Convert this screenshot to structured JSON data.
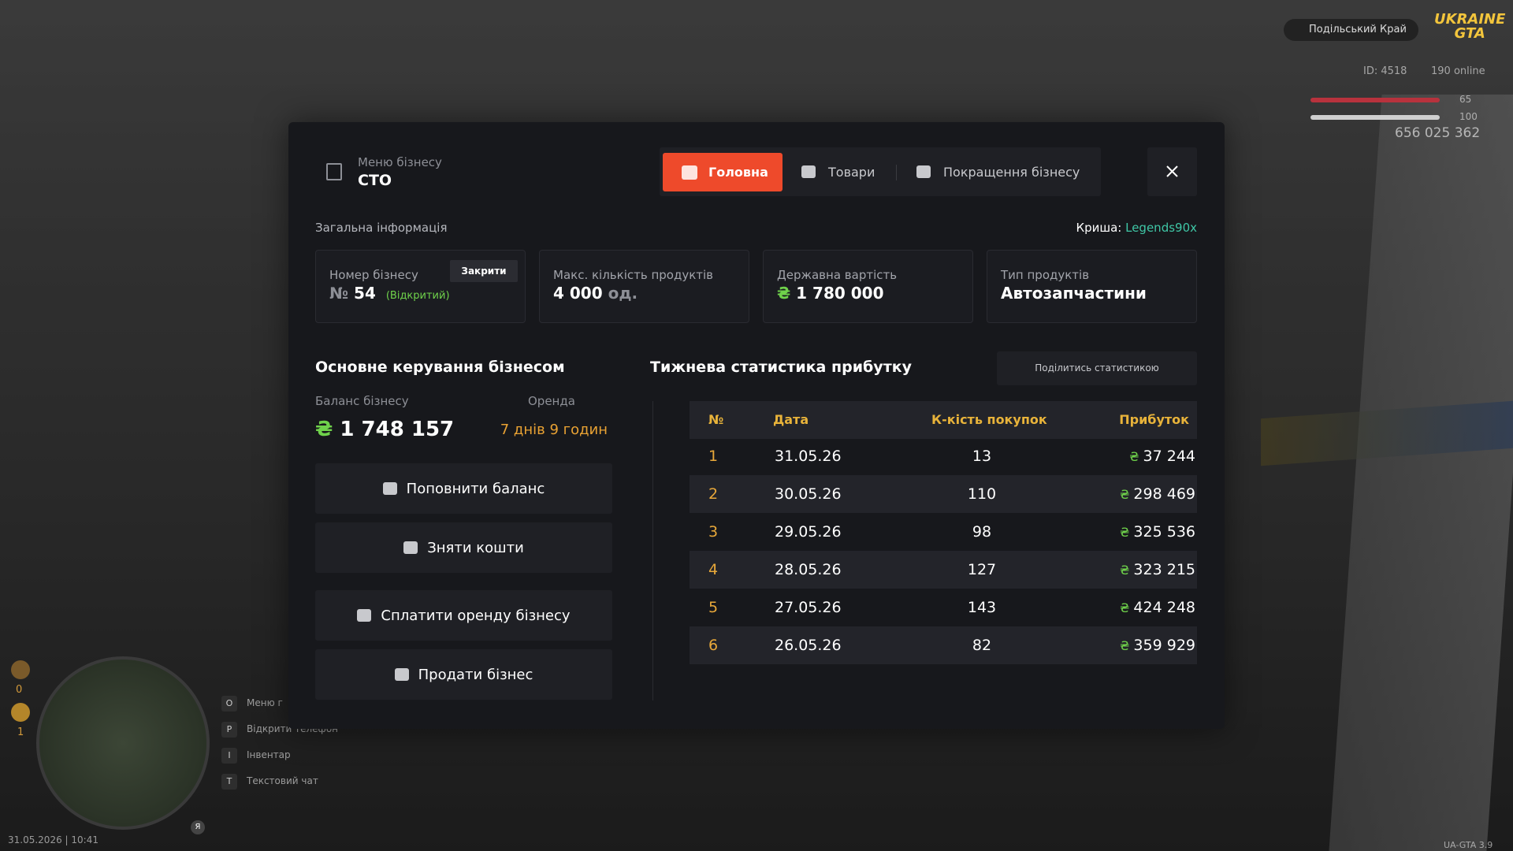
{
  "hud": {
    "logo": [
      "UKRAINE",
      "GTA"
    ],
    "region": "Подільський Край",
    "id": "ID: 4518",
    "online": "190 online",
    "health": "65",
    "armor": "100",
    "money": "656 025 362",
    "wanted": [
      "0",
      "1"
    ],
    "keys": [
      {
        "key": "O",
        "label": "Меню г"
      },
      {
        "key": "P",
        "label": "Відкрити телефон"
      },
      {
        "key": "I",
        "label": "Інвентар"
      },
      {
        "key": "T",
        "label": "Текстовий чат"
      }
    ],
    "mic_key": "Я",
    "date": "31.05.2026 | 10:41",
    "version": "UA-GTA 3.9"
  },
  "modal": {
    "menu_label": "Меню бізнесу",
    "business_name": "СТО",
    "currency": "₴",
    "tabs": [
      "Головна",
      "Товари",
      "Покращення бізнесу"
    ],
    "general_info": "Загальна інформація",
    "roof_label": "Криша:",
    "roof_value": "Legends90x",
    "cards": [
      {
        "label": "Номер бізнесу",
        "button": "Закрити",
        "prefix": "№",
        "value": "54",
        "status": "(Відкритий)"
      },
      {
        "label": "Макс. кількість продуктів",
        "value": "4 000",
        "unit": "од."
      },
      {
        "label": "Державна вартість",
        "value": "1 780 000"
      },
      {
        "label": "Тип продуктів",
        "value": "Автозапчастини"
      }
    ],
    "management": {
      "title": "Основне керування бізнесом",
      "balance_label": "Баланс бізнесу",
      "balance": "1 748 157",
      "rent_label": "Оренда",
      "rent": "7 днів 9 годин",
      "buttons": [
        "Поповнити баланс",
        "Зняти кошти",
        "Сплатити оренду бізнесу",
        "Продати бізнес"
      ]
    },
    "stats": {
      "title": "Тижнева статистика прибутку",
      "share": "Поділитись статистикою",
      "columns": [
        "№",
        "Дата",
        "К-кість покупок",
        "Прибуток"
      ],
      "rows": [
        [
          "1",
          "31.05.26",
          "13",
          "37 244"
        ],
        [
          "2",
          "30.05.26",
          "110",
          "298 469"
        ],
        [
          "3",
          "29.05.26",
          "98",
          "325 536"
        ],
        [
          "4",
          "28.05.26",
          "127",
          "323 215"
        ],
        [
          "5",
          "27.05.26",
          "143",
          "424 248"
        ],
        [
          "6",
          "26.05.26",
          "82",
          "359 929"
        ]
      ]
    }
  }
}
